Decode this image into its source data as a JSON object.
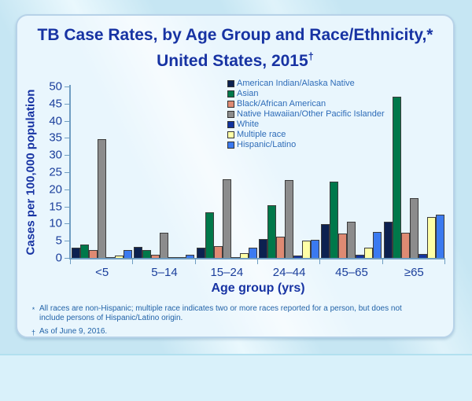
{
  "slide": {
    "title_line1": "TB Case Rates, by Age Group and Race/Ethnicity,*",
    "title_line2": "United States, 2015",
    "title_dagger": "†"
  },
  "footnotes": [
    {
      "marker": "*",
      "text": "All races are non-Hispanic; multiple race indicates two or more races reported for a person, but does not include persons of Hispanic/Latino origin."
    },
    {
      "marker": "†",
      "text": "As of June 9, 2016."
    }
  ],
  "chart_data": {
    "type": "bar",
    "title": "TB Case Rates, by Age Group and Race/Ethnicity, United States, 2015",
    "categories": [
      "<5",
      "5–14",
      "15–24",
      "24–44",
      "45–65",
      "≥65"
    ],
    "series": [
      {
        "name": "American Indian/Alaska Native",
        "color": "#0c2150",
        "values": [
          3.0,
          3.1,
          2.9,
          5.5,
          9.8,
          10.6
        ]
      },
      {
        "name": "Asian",
        "color": "#00784a",
        "values": [
          3.9,
          2.2,
          13.2,
          15.3,
          22.2,
          47.1
        ]
      },
      {
        "name": "Black/African American",
        "color": "#de8a73",
        "values": [
          2.2,
          1.0,
          3.5,
          6.2,
          7.0,
          7.3
        ]
      },
      {
        "name": "Native Hawaiian/Other Pacific Islander",
        "color": "#8c8c8c",
        "values": [
          34.7,
          7.4,
          23.0,
          22.6,
          10.5,
          17.5
        ]
      },
      {
        "name": "White",
        "color": "#11339e",
        "values": [
          0.3,
          0.2,
          0.3,
          0.8,
          1.0,
          1.2
        ]
      },
      {
        "name": "Multiple race",
        "color": "#ffffa6",
        "values": [
          0.6,
          0.1,
          1.4,
          5.0,
          3.0,
          11.9
        ]
      },
      {
        "name": "Hispanic/Latino",
        "color": "#3b7af0",
        "values": [
          2.2,
          1.0,
          2.9,
          5.3,
          7.5,
          12.6
        ]
      }
    ],
    "xlabel": "Age group (yrs)",
    "ylabel": "Cases per 100,000 population",
    "ylim": [
      0,
      50
    ],
    "ytick_interval": 5,
    "grid": false,
    "legend_position": "top-center-inside",
    "axis_color": "#6f9dc2",
    "label_color": "#1b3f9c",
    "title_color": "#1733a3",
    "legend_text_color": "#2e6cb8"
  }
}
